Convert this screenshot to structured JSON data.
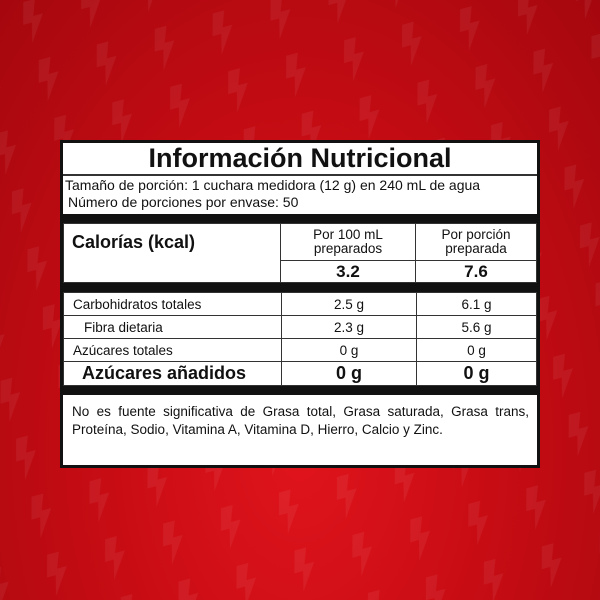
{
  "background": {
    "color": "#c80c14",
    "pattern_icon": "lightning-bolt-icon"
  },
  "title": "Información Nutricional",
  "serving_size": "Tamaño de porción: 1 cuchara medidora (12 g) en 240 mL de agua",
  "servings_per_container": "Número de porciones por envase: 50",
  "calories": {
    "label": "Calorías (kcal)",
    "col1_header": "Por 100 mL preparados",
    "col2_header": "Por porción preparada",
    "col1_value": "3.2",
    "col2_value": "7.6"
  },
  "rows": [
    {
      "name": "Carbohidratos totales",
      "v1": "2.5 g",
      "v2": "6.1 g"
    },
    {
      "name": "Fibra dietaria",
      "v1": "2.3 g",
      "v2": "5.6 g"
    },
    {
      "name": "Azúcares totales",
      "v1": "0 g",
      "v2": "0 g"
    },
    {
      "name": "Azúcares añadidos",
      "v1": "0 g",
      "v2": "0 g"
    }
  ],
  "footnote": "No es fuente significativa de Grasa total, Grasa saturada, Grasa trans, Proteína, Sodio, Vitamina A, Vitamina D, Hierro, Calcio y Zinc."
}
